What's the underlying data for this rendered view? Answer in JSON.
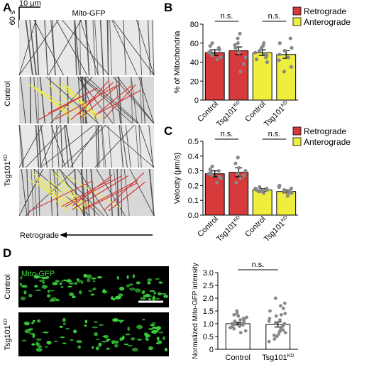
{
  "panels": {
    "A": {
      "letter": "A",
      "scale_x": "10 μm",
      "scale_y": "60 s",
      "title": "Mito-GFP",
      "row_control": "Control",
      "row_tsg": "Tsg101",
      "row_tsg_sup": "KD",
      "arrow_label": "Retrograde"
    },
    "B": {
      "letter": "B"
    },
    "C": {
      "letter": "C"
    },
    "D": {
      "letter": "D",
      "micro_label": "Mito-GFP",
      "row_control": "Control",
      "row_tsg": "Tsg101",
      "row_tsg_sup": "KD"
    }
  },
  "colors": {
    "retrograde": "#d63a3a",
    "anterograde": "#f0ee3c",
    "points": "#888888",
    "gfp": "#3ddc3d"
  },
  "chart_data": [
    {
      "id": "B",
      "type": "bar",
      "ylabel": "% of Mitochondria",
      "ylim": [
        0,
        80
      ],
      "yticks": [
        "0",
        "20",
        "40",
        "60",
        "80"
      ],
      "categories": [
        "Control",
        "Tsg101",
        "Control",
        "Tsg101"
      ],
      "category_sup": [
        "",
        "KD",
        "",
        "KD"
      ],
      "values": [
        50,
        52,
        50,
        48
      ],
      "errors": [
        3,
        4,
        3,
        4
      ],
      "bar_colors": [
        "#d63a3a",
        "#d63a3a",
        "#f0ee3c",
        "#f0ee3c"
      ],
      "points": [
        [
          43,
          45,
          48,
          50,
          52,
          55,
          57,
          60,
          53,
          47
        ],
        [
          30,
          38,
          45,
          50,
          55,
          60,
          65,
          70,
          58
        ],
        [
          40,
          43,
          47,
          50,
          52,
          55,
          57,
          60,
          49,
          45
        ],
        [
          30,
          35,
          42,
          48,
          52,
          55,
          60,
          65,
          45
        ]
      ],
      "significance": [
        "n.s.",
        "n.s."
      ],
      "legend": [
        {
          "name": "Retrograde",
          "color": "#d63a3a"
        },
        {
          "name": "Anterograde",
          "color": "#f0ee3c"
        }
      ]
    },
    {
      "id": "C",
      "type": "bar",
      "ylabel": "Velocity (μm/s)",
      "ylim": [
        0,
        0.5
      ],
      "yticks": [
        "0.0",
        "0.1",
        "0.2",
        "0.3",
        "0.4",
        "0.5"
      ],
      "categories": [
        "Control",
        "Tsg101",
        "Control",
        "Tsg101"
      ],
      "category_sup": [
        "",
        "KD",
        "",
        "KD"
      ],
      "values": [
        0.28,
        0.29,
        0.17,
        0.16
      ],
      "errors": [
        0.02,
        0.03,
        0.01,
        0.01
      ],
      "bar_colors": [
        "#d63a3a",
        "#d63a3a",
        "#f0ee3c",
        "#f0ee3c"
      ],
      "points": [
        [
          0.22,
          0.25,
          0.27,
          0.28,
          0.29,
          0.3,
          0.31,
          0.33,
          0.26
        ],
        [
          0.22,
          0.25,
          0.27,
          0.3,
          0.32,
          0.35,
          0.39,
          0.28
        ],
        [
          0.15,
          0.16,
          0.17,
          0.17,
          0.18,
          0.18,
          0.19,
          0.16,
          0.17
        ],
        [
          0.13,
          0.15,
          0.16,
          0.17,
          0.18,
          0.19,
          0.2,
          0.16,
          0.15
        ]
      ],
      "significance": [
        "n.s.",
        "n.s."
      ],
      "legend": [
        {
          "name": "Retrograde",
          "color": "#d63a3a"
        },
        {
          "name": "Anterograde",
          "color": "#f0ee3c"
        }
      ]
    },
    {
      "id": "D",
      "type": "bar",
      "ylabel": "Normalized Mito-GFP intensity",
      "ylim": [
        0,
        3.0
      ],
      "yticks": [
        "0",
        "0.5",
        "1.0",
        "1.5",
        "2.0",
        "2.5",
        "3.0"
      ],
      "categories": [
        "Control",
        "Tsg101"
      ],
      "category_sup": [
        "",
        "KD"
      ],
      "values": [
        1.0,
        0.97
      ],
      "errors": [
        0.05,
        0.1
      ],
      "bar_colors": [
        "#ffffff",
        "#ffffff"
      ],
      "points": [
        [
          0.65,
          0.72,
          0.8,
          0.85,
          0.9,
          0.95,
          1.0,
          1.0,
          1.05,
          1.1,
          1.15,
          1.2,
          1.25,
          1.3,
          1.35,
          1.4,
          1.5,
          0.9,
          1.0,
          1.1,
          0.85,
          1.2
        ],
        [
          0.3,
          0.4,
          0.5,
          0.6,
          0.7,
          0.8,
          0.9,
          1.0,
          1.0,
          1.1,
          1.2,
          1.3,
          1.4,
          1.5,
          1.6,
          1.7,
          1.8,
          2.0,
          0.75,
          0.95,
          1.15,
          1.35,
          0.55,
          0.65
        ]
      ],
      "significance": [
        "n.s."
      ],
      "legend": []
    }
  ]
}
